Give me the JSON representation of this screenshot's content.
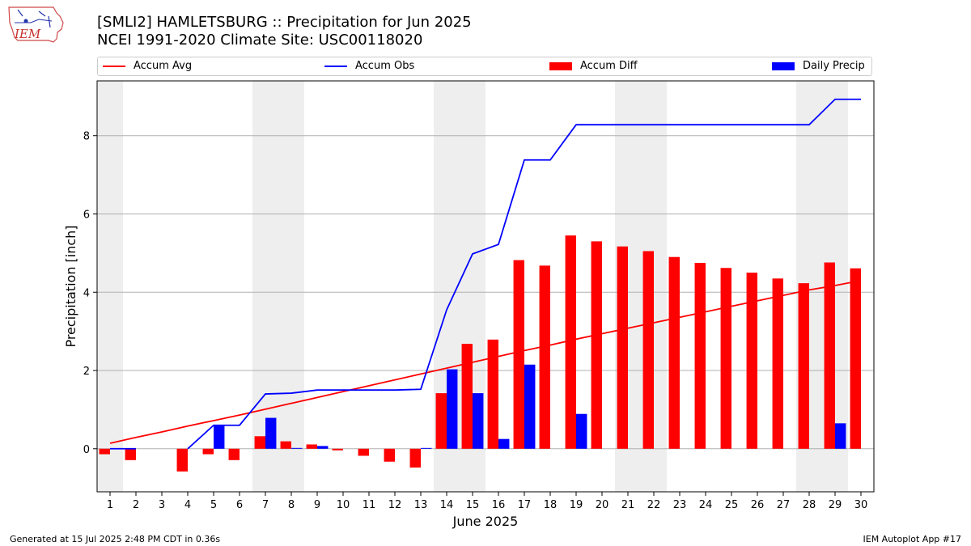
{
  "header": {
    "title_line1": "[SMLI2] HAMLETSBURG :: Precipitation for Jun 2025",
    "title_line2": "NCEI 1991-2020 Climate Site: USC00118020"
  },
  "logo": {
    "text": "IEM",
    "icon": "iowa-state-outline-logo"
  },
  "legend": {
    "avg": "Accum Avg",
    "obs": "Accum Obs",
    "diff": "Accum Diff",
    "daily": "Daily Precip"
  },
  "footer": {
    "left": "Generated at 15 Jul 2025 2:48 PM CDT in 0.36s",
    "right": "IEM Autoplot App #17"
  },
  "colors": {
    "avg": "#ff0000",
    "obs": "#0000ff",
    "diff": "#ff0000",
    "daily": "#0000ff",
    "weekend_band": "#eeeeee",
    "grid": "#b0b0b0"
  },
  "chart_data": {
    "type": "bar",
    "xlabel": "June 2025",
    "ylabel": "Precipitation [inch]",
    "x": [
      1,
      2,
      3,
      4,
      5,
      6,
      7,
      8,
      9,
      10,
      11,
      12,
      13,
      14,
      15,
      16,
      17,
      18,
      19,
      20,
      21,
      22,
      23,
      24,
      25,
      26,
      27,
      28,
      29,
      30
    ],
    "xlim": [
      0.5,
      30.5
    ],
    "ylim": [
      -1.1,
      9.4
    ],
    "yticks": [
      0,
      2,
      4,
      6,
      8
    ],
    "grid": "horizontal",
    "shaded_days": [
      1,
      7,
      8,
      14,
      15,
      21,
      22,
      28,
      29
    ],
    "series": [
      {
        "name": "Accum Avg",
        "kind": "line",
        "values": [
          0.14,
          0.29,
          0.43,
          0.58,
          0.72,
          0.86,
          1.01,
          1.16,
          1.31,
          1.46,
          1.61,
          1.76,
          1.91,
          2.06,
          2.21,
          2.36,
          2.51,
          2.65,
          2.8,
          2.94,
          3.08,
          3.22,
          3.36,
          3.5,
          3.64,
          3.78,
          3.92,
          4.06,
          4.17,
          4.3
        ]
      },
      {
        "name": "Accum Obs",
        "kind": "line",
        "values": [
          0.0,
          0.0,
          null,
          0.0,
          0.6,
          0.6,
          1.4,
          1.42,
          1.5,
          1.5,
          1.5,
          1.5,
          1.52,
          3.55,
          4.98,
          5.22,
          7.38,
          7.38,
          8.28,
          8.28,
          8.28,
          8.28,
          8.28,
          8.28,
          8.28,
          8.28,
          8.28,
          8.28,
          8.93,
          8.93
        ]
      },
      {
        "name": "Accum Diff",
        "kind": "bar",
        "values": [
          -0.14,
          -0.29,
          null,
          -0.58,
          -0.14,
          -0.29,
          0.32,
          0.19,
          0.11,
          -0.04,
          -0.18,
          -0.33,
          -0.48,
          1.42,
          2.68,
          2.79,
          4.82,
          4.68,
          5.45,
          5.3,
          5.17,
          5.05,
          4.9,
          4.75,
          4.62,
          4.5,
          4.35,
          4.23,
          4.76,
          4.61
        ]
      },
      {
        "name": "Daily Precip",
        "kind": "bar",
        "values": [
          0.0,
          0.0,
          null,
          0.0,
          0.6,
          0.0,
          0.79,
          0.02,
          0.07,
          0.0,
          0.0,
          0.0,
          0.02,
          2.03,
          1.42,
          0.25,
          2.15,
          0.0,
          0.89,
          0.0,
          0.0,
          0.0,
          0.0,
          0.0,
          0.0,
          0.0,
          0.0,
          0.0,
          0.65,
          0.0
        ]
      }
    ]
  }
}
